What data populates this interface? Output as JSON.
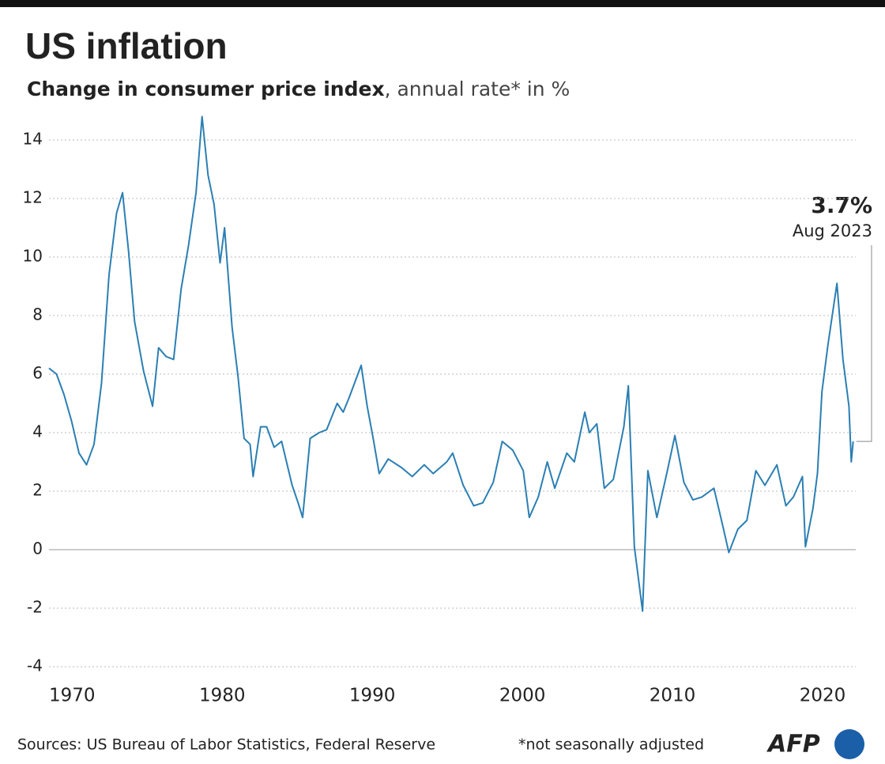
{
  "chart_data": {
    "type": "line",
    "title": "US inflation",
    "subtitle_bold": "Change in consumer price index",
    "subtitle_rest": ", annual rate* in %",
    "x": [
      1970.0,
      1970.5,
      1971.0,
      1971.5,
      1972.0,
      1972.5,
      1973.0,
      1973.5,
      1974.0,
      1974.5,
      1974.9,
      1975.3,
      1975.7,
      1976.3,
      1976.9,
      1977.3,
      1977.8,
      1978.3,
      1978.8,
      1979.3,
      1979.8,
      1980.2,
      1980.6,
      1981.0,
      1981.4,
      1981.7,
      1982.2,
      1982.6,
      1983.0,
      1983.4,
      1983.6,
      1984.1,
      1984.5,
      1985.0,
      1985.5,
      1986.2,
      1986.6,
      1986.9,
      1987.4,
      1988.0,
      1988.5,
      1989.2,
      1989.6,
      1990.0,
      1990.8,
      1991.2,
      1991.6,
      1992.0,
      1992.6,
      1993.5,
      1994.2,
      1995.0,
      1995.6,
      1996.5,
      1996.9,
      1997.6,
      1998.3,
      1998.9,
      1999.6,
      2000.2,
      2000.9,
      2001.6,
      2002.0,
      2002.6,
      2003.2,
      2003.7,
      2004.5,
      2005.0,
      2005.7,
      2006.0,
      2006.5,
      2007.0,
      2007.6,
      2008.3,
      2008.6,
      2009.0,
      2009.55,
      2009.9,
      2010.5,
      2011.2,
      2011.7,
      2012.3,
      2012.9,
      2013.5,
      2014.3,
      2014.9,
      2015.3,
      2015.9,
      2016.5,
      2017.1,
      2017.7,
      2018.5,
      2019.1,
      2019.6,
      2020.2,
      2020.4,
      2020.9,
      2021.2,
      2021.5,
      2021.9,
      2022.5,
      2022.9,
      2023.3,
      2023.45,
      2023.58
    ],
    "series": [
      {
        "name": "CPI",
        "color": "#2b7fb3",
        "values": [
          6.2,
          6.0,
          5.3,
          4.4,
          3.3,
          2.9,
          3.6,
          5.7,
          9.4,
          11.5,
          12.2,
          10.2,
          7.8,
          6.1,
          4.9,
          6.9,
          6.6,
          6.5,
          8.9,
          10.4,
          12.2,
          14.8,
          12.8,
          11.8,
          9.8,
          11.0,
          7.6,
          5.9,
          3.8,
          3.6,
          2.5,
          4.2,
          4.2,
          3.5,
          3.7,
          2.2,
          1.6,
          1.1,
          3.8,
          4.0,
          4.1,
          5.0,
          4.7,
          5.2,
          6.3,
          4.9,
          3.8,
          2.6,
          3.1,
          2.8,
          2.5,
          2.9,
          2.6,
          3.0,
          3.3,
          2.2,
          1.5,
          1.6,
          2.3,
          3.7,
          3.4,
          2.7,
          1.1,
          1.8,
          3.0,
          2.1,
          3.3,
          3.0,
          4.7,
          4.0,
          4.3,
          2.1,
          2.4,
          4.2,
          5.6,
          0.1,
          -2.1,
          2.7,
          1.1,
          2.7,
          3.9,
          2.3,
          1.7,
          1.8,
          2.1,
          0.8,
          -0.1,
          0.7,
          1.0,
          2.7,
          2.2,
          2.9,
          1.5,
          1.8,
          2.5,
          0.1,
          1.4,
          2.6,
          5.4,
          7.0,
          9.1,
          6.5,
          4.9,
          3.0,
          3.7
        ]
      }
    ],
    "xlim": [
      1970,
      2023.7
    ],
    "xticks": [
      1970,
      1980,
      1990,
      2000,
      2010,
      2020
    ],
    "ylim": [
      -4,
      15
    ],
    "yticks": [
      -4,
      -2,
      0,
      2,
      4,
      6,
      8,
      10,
      12,
      14
    ],
    "grid": true,
    "annotation_value": "3.7%",
    "annotation_date": "Aug 2023",
    "source": "Sources: US Bureau of Labor Statistics, Federal Reserve",
    "note": "*not seasonally adjusted",
    "logo": "AFP"
  }
}
